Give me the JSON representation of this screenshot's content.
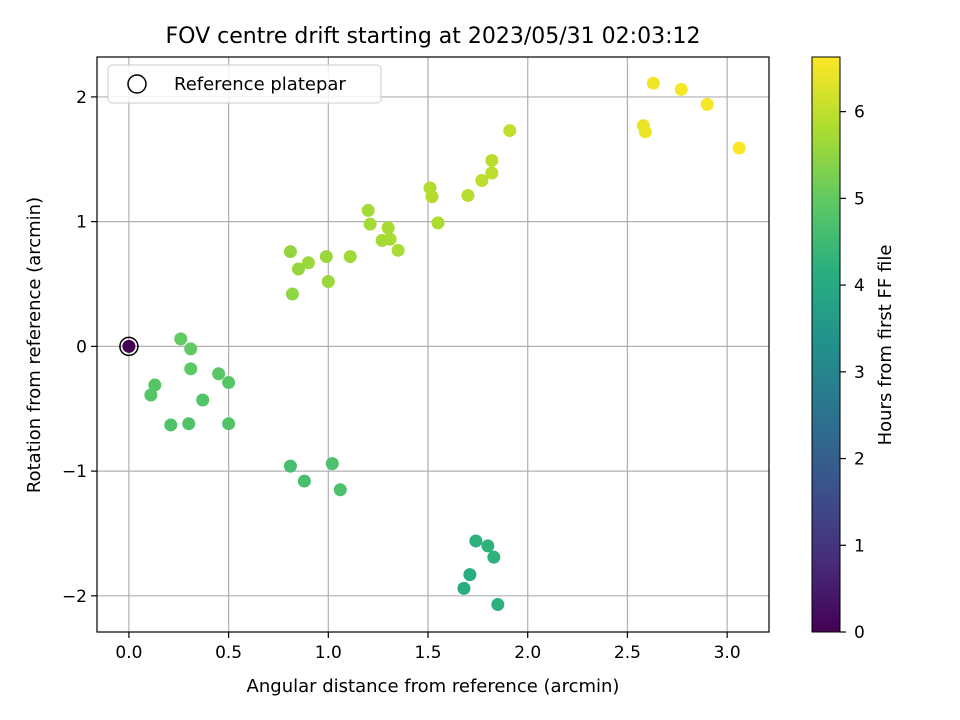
{
  "chart_data": {
    "type": "scatter",
    "title": "FOV centre drift starting at 2023/05/31 02:03:12",
    "xlabel": "Angular distance from reference (arcmin)",
    "ylabel": "Rotation from reference (arcmin)",
    "xlim": [
      -0.16,
      3.21
    ],
    "ylim": [
      -2.29,
      2.32
    ],
    "grid": true,
    "x_ticks": [
      0.0,
      0.5,
      1.0,
      1.5,
      2.0,
      2.5,
      3.0
    ],
    "x_tick_labels": [
      "0.0",
      "0.5",
      "1.0",
      "1.5",
      "2.0",
      "2.5",
      "3.0"
    ],
    "y_ticks": [
      -2,
      -1,
      0,
      1,
      2
    ],
    "y_tick_labels": [
      "−2",
      "−1",
      "0",
      "1",
      "2"
    ],
    "legend": {
      "placement": "top-left",
      "label": "Reference platepar"
    },
    "reference_point": {
      "x": 0.0,
      "y": 0.0
    },
    "colorbar": {
      "label": "Hours from first FF file",
      "range": [
        0,
        6.63
      ],
      "ticks": [
        0,
        1,
        2,
        3,
        4,
        5,
        6
      ],
      "tick_labels": [
        "0",
        "1",
        "2",
        "3",
        "4",
        "5",
        "6"
      ],
      "colormap": "viridis"
    },
    "points": [
      {
        "x": 0.0,
        "y": 0.0,
        "c": 0.0
      },
      {
        "x": 1.68,
        "y": -1.94,
        "c": 4.1
      },
      {
        "x": 1.71,
        "y": -1.83,
        "c": 4.15
      },
      {
        "x": 1.85,
        "y": -2.07,
        "c": 4.2
      },
      {
        "x": 1.74,
        "y": -1.56,
        "c": 4.2
      },
      {
        "x": 1.8,
        "y": -1.6,
        "c": 4.25
      },
      {
        "x": 1.83,
        "y": -1.69,
        "c": 4.25
      },
      {
        "x": 0.81,
        "y": -0.96,
        "c": 4.65
      },
      {
        "x": 0.88,
        "y": -1.08,
        "c": 4.65
      },
      {
        "x": 1.02,
        "y": -0.94,
        "c": 4.7
      },
      {
        "x": 1.06,
        "y": -1.15,
        "c": 4.7
      },
      {
        "x": 0.21,
        "y": -0.63,
        "c": 4.75
      },
      {
        "x": 0.3,
        "y": -0.62,
        "c": 4.75
      },
      {
        "x": 0.37,
        "y": -0.43,
        "c": 4.8
      },
      {
        "x": 0.5,
        "y": -0.62,
        "c": 4.8
      },
      {
        "x": 0.13,
        "y": -0.31,
        "c": 4.85
      },
      {
        "x": 0.11,
        "y": -0.39,
        "c": 4.85
      },
      {
        "x": 0.5,
        "y": -0.29,
        "c": 4.85
      },
      {
        "x": 0.45,
        "y": -0.22,
        "c": 4.9
      },
      {
        "x": 0.31,
        "y": -0.18,
        "c": 4.95
      },
      {
        "x": 0.26,
        "y": 0.06,
        "c": 5.0
      },
      {
        "x": 0.31,
        "y": -0.02,
        "c": 5.0
      },
      {
        "x": 0.82,
        "y": 0.42,
        "c": 5.5
      },
      {
        "x": 0.81,
        "y": 0.76,
        "c": 5.55
      },
      {
        "x": 0.85,
        "y": 0.62,
        "c": 5.55
      },
      {
        "x": 0.9,
        "y": 0.67,
        "c": 5.6
      },
      {
        "x": 0.99,
        "y": 0.72,
        "c": 5.6
      },
      {
        "x": 1.0,
        "y": 0.52,
        "c": 5.6
      },
      {
        "x": 1.11,
        "y": 0.72,
        "c": 5.65
      },
      {
        "x": 1.2,
        "y": 1.09,
        "c": 5.7
      },
      {
        "x": 1.21,
        "y": 0.98,
        "c": 5.7
      },
      {
        "x": 1.27,
        "y": 0.85,
        "c": 5.7
      },
      {
        "x": 1.3,
        "y": 0.95,
        "c": 5.75
      },
      {
        "x": 1.31,
        "y": 0.86,
        "c": 5.75
      },
      {
        "x": 1.35,
        "y": 0.77,
        "c": 5.75
      },
      {
        "x": 1.55,
        "y": 0.99,
        "c": 5.8
      },
      {
        "x": 1.51,
        "y": 1.27,
        "c": 5.85
      },
      {
        "x": 1.52,
        "y": 1.2,
        "c": 5.85
      },
      {
        "x": 1.7,
        "y": 1.21,
        "c": 5.9
      },
      {
        "x": 1.77,
        "y": 1.33,
        "c": 5.95
      },
      {
        "x": 1.82,
        "y": 1.39,
        "c": 5.95
      },
      {
        "x": 1.82,
        "y": 1.49,
        "c": 5.95
      },
      {
        "x": 1.91,
        "y": 1.73,
        "c": 6.0
      },
      {
        "x": 2.58,
        "y": 1.77,
        "c": 6.45
      },
      {
        "x": 2.59,
        "y": 1.72,
        "c": 6.45
      },
      {
        "x": 2.63,
        "y": 2.11,
        "c": 6.5
      },
      {
        "x": 2.77,
        "y": 2.06,
        "c": 6.55
      },
      {
        "x": 2.9,
        "y": 1.94,
        "c": 6.55
      },
      {
        "x": 3.06,
        "y": 1.59,
        "c": 6.6
      }
    ]
  }
}
